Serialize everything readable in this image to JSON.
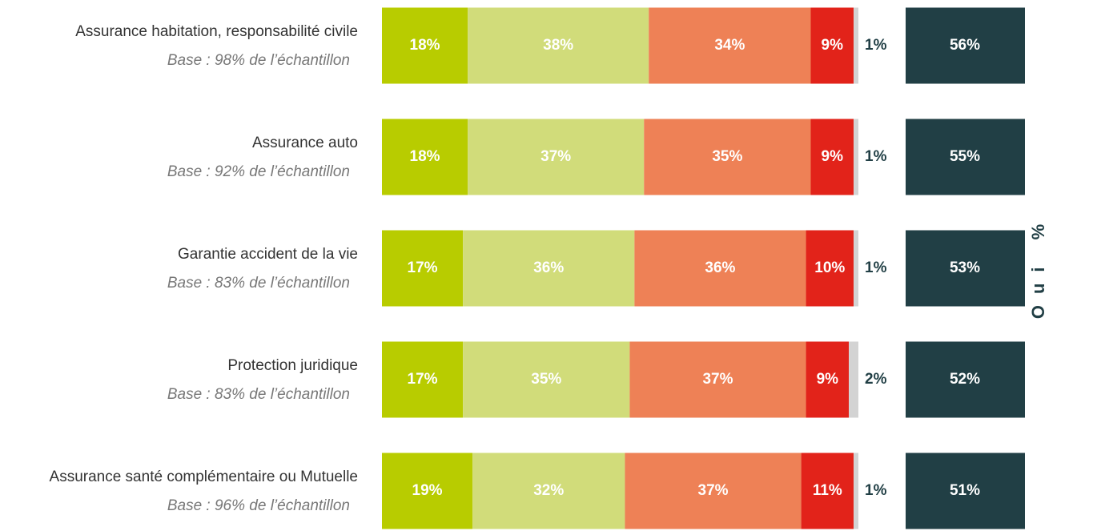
{
  "chart_data": {
    "type": "stacked-bar-horizontal",
    "categories": [
      "Assurance habitation, responsabilité civile",
      "Assurance auto",
      "Garantie accident de la vie",
      "Protection juridique",
      "Assurance santé complémentaire ou Mutuelle"
    ],
    "category_notes": [
      "Base : 98% de l’échantillon",
      "Base : 92% de l’échantillon",
      "Base : 83% de l’échantillon",
      "Base : 83% de l’échantillon",
      "Base : 96% de l’échantillon"
    ],
    "xlim": [
      0,
      100
    ],
    "series": [
      {
        "color": "#b8cc00",
        "values": [
          18,
          18,
          17,
          17,
          19
        ],
        "value_labels": [
          "18%",
          "18%",
          "17%",
          "17%",
          "19%"
        ]
      },
      {
        "color": "#d1dc7a",
        "values": [
          38,
          37,
          36,
          35,
          32
        ],
        "value_labels": [
          "38%",
          "37%",
          "36%",
          "35%",
          "32%"
        ]
      },
      {
        "color": "#ee8156",
        "values": [
          34,
          35,
          36,
          37,
          37
        ],
        "value_labels": [
          "34%",
          "35%",
          "36%",
          "37%",
          "37%"
        ]
      },
      {
        "color": "#e2231a",
        "values": [
          9,
          9,
          10,
          9,
          11
        ],
        "value_labels": [
          "9%",
          "9%",
          "10%",
          "9%",
          "11%"
        ]
      },
      {
        "color": "#d3d3d3",
        "values": [
          1,
          1,
          1,
          2,
          1
        ],
        "value_labels": [
          "1%",
          "1%",
          "1%",
          "2%",
          "1%"
        ]
      }
    ],
    "totals": {
      "label": "Oui %",
      "color": "#213f45",
      "values": [
        56,
        55,
        53,
        52,
        51
      ],
      "value_labels": [
        "56%",
        "55%",
        "53%",
        "52%",
        "51%"
      ]
    }
  }
}
